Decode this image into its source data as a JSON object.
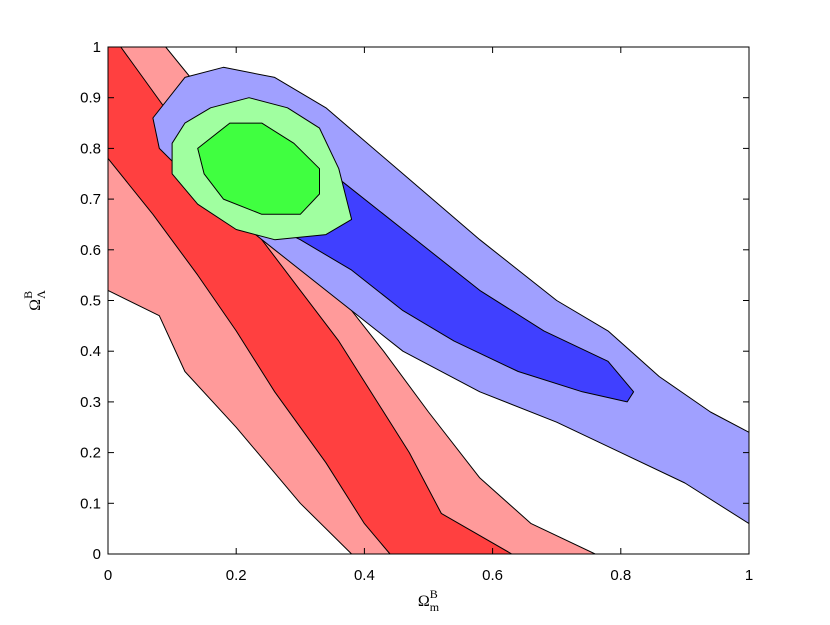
{
  "chart_data": {
    "type": "contour",
    "title": "",
    "xlabel": {
      "base": "Ω",
      "sup": "B",
      "sub": "m"
    },
    "ylabel": {
      "base": "Ω",
      "sup": "B",
      "sub": "Λ"
    },
    "xlim": [
      0,
      1
    ],
    "ylim": [
      0,
      1
    ],
    "grid": false,
    "xticks": [
      {
        "value": 0,
        "label": "0"
      },
      {
        "value": 0.2,
        "label": "0.2"
      },
      {
        "value": 0.4,
        "label": "0.4"
      },
      {
        "value": 0.6,
        "label": "0.6"
      },
      {
        "value": 0.8,
        "label": "0.8"
      },
      {
        "value": 1,
        "label": "1"
      }
    ],
    "yticks": [
      {
        "value": 0,
        "label": "0"
      },
      {
        "value": 0.1,
        "label": "0.1"
      },
      {
        "value": 0.2,
        "label": "0.2"
      },
      {
        "value": 0.3,
        "label": "0.3"
      },
      {
        "value": 0.4,
        "label": "0.4"
      },
      {
        "value": 0.5,
        "label": "0.5"
      },
      {
        "value": 0.6,
        "label": "0.6"
      },
      {
        "value": 0.7,
        "label": "0.7"
      },
      {
        "value": 0.8,
        "label": "0.8"
      },
      {
        "value": 0.9,
        "label": "0.9"
      },
      {
        "value": 1,
        "label": "1"
      }
    ],
    "regions": [
      {
        "id": "red-outer",
        "color": "#ff9a9a",
        "points": [
          [
            0,
            1
          ],
          [
            0.09,
            1
          ],
          [
            0.18,
            0.86
          ],
          [
            0.24,
            0.74
          ],
          [
            0.32,
            0.6
          ],
          [
            0.38,
            0.48
          ],
          [
            0.43,
            0.4
          ],
          [
            0.5,
            0.28
          ],
          [
            0.58,
            0.15
          ],
          [
            0.66,
            0.06
          ],
          [
            0.76,
            0
          ],
          [
            0.38,
            0
          ],
          [
            0.3,
            0.1
          ],
          [
            0.2,
            0.25
          ],
          [
            0.12,
            0.36
          ],
          [
            0.08,
            0.47
          ],
          [
            0,
            0.52
          ]
        ]
      },
      {
        "id": "red-inner",
        "color": "#ff4040",
        "points": [
          [
            0,
            1
          ],
          [
            0.02,
            1
          ],
          [
            0.1,
            0.86
          ],
          [
            0.16,
            0.75
          ],
          [
            0.24,
            0.62
          ],
          [
            0.3,
            0.52
          ],
          [
            0.36,
            0.42
          ],
          [
            0.4,
            0.34
          ],
          [
            0.47,
            0.2
          ],
          [
            0.52,
            0.08
          ],
          [
            0.63,
            0
          ],
          [
            0.44,
            0
          ],
          [
            0.4,
            0.06
          ],
          [
            0.34,
            0.18
          ],
          [
            0.26,
            0.32
          ],
          [
            0.2,
            0.44
          ],
          [
            0.14,
            0.55
          ],
          [
            0.07,
            0.67
          ],
          [
            0,
            0.78
          ]
        ]
      },
      {
        "id": "blue-outer",
        "color": "#a0a0ff",
        "points": [
          [
            0.07,
            0.86
          ],
          [
            0.12,
            0.94
          ],
          [
            0.18,
            0.96
          ],
          [
            0.26,
            0.94
          ],
          [
            0.34,
            0.88
          ],
          [
            0.46,
            0.75
          ],
          [
            0.58,
            0.62
          ],
          [
            0.7,
            0.5
          ],
          [
            0.78,
            0.44
          ],
          [
            0.86,
            0.35
          ],
          [
            0.94,
            0.28
          ],
          [
            1,
            0.24
          ],
          [
            1,
            0.06
          ],
          [
            0.9,
            0.14
          ],
          [
            0.8,
            0.2
          ],
          [
            0.7,
            0.26
          ],
          [
            0.58,
            0.32
          ],
          [
            0.46,
            0.4
          ],
          [
            0.36,
            0.5
          ],
          [
            0.26,
            0.6
          ],
          [
            0.18,
            0.68
          ],
          [
            0.12,
            0.75
          ],
          [
            0.08,
            0.8
          ]
        ]
      },
      {
        "id": "blue-inner",
        "color": "#4040ff",
        "points": [
          [
            0.2,
            0.84
          ],
          [
            0.28,
            0.8
          ],
          [
            0.36,
            0.74
          ],
          [
            0.46,
            0.64
          ],
          [
            0.58,
            0.52
          ],
          [
            0.68,
            0.44
          ],
          [
            0.78,
            0.38
          ],
          [
            0.82,
            0.32
          ],
          [
            0.81,
            0.3
          ],
          [
            0.74,
            0.32
          ],
          [
            0.64,
            0.36
          ],
          [
            0.54,
            0.42
          ],
          [
            0.46,
            0.48
          ],
          [
            0.38,
            0.56
          ],
          [
            0.3,
            0.62
          ],
          [
            0.22,
            0.67
          ],
          [
            0.18,
            0.72
          ]
        ]
      },
      {
        "id": "green-outer",
        "color": "#a0ffa0",
        "points": [
          [
            0.12,
            0.85
          ],
          [
            0.16,
            0.88
          ],
          [
            0.22,
            0.9
          ],
          [
            0.28,
            0.88
          ],
          [
            0.33,
            0.84
          ],
          [
            0.36,
            0.76
          ],
          [
            0.38,
            0.66
          ],
          [
            0.34,
            0.63
          ],
          [
            0.26,
            0.62
          ],
          [
            0.2,
            0.64
          ],
          [
            0.14,
            0.69
          ],
          [
            0.1,
            0.75
          ],
          [
            0.1,
            0.81
          ]
        ]
      },
      {
        "id": "green-inner",
        "color": "#40ff40",
        "points": [
          [
            0.14,
            0.8
          ],
          [
            0.19,
            0.85
          ],
          [
            0.24,
            0.85
          ],
          [
            0.29,
            0.81
          ],
          [
            0.33,
            0.76
          ],
          [
            0.33,
            0.71
          ],
          [
            0.3,
            0.67
          ],
          [
            0.24,
            0.67
          ],
          [
            0.18,
            0.7
          ],
          [
            0.15,
            0.75
          ]
        ]
      }
    ]
  }
}
